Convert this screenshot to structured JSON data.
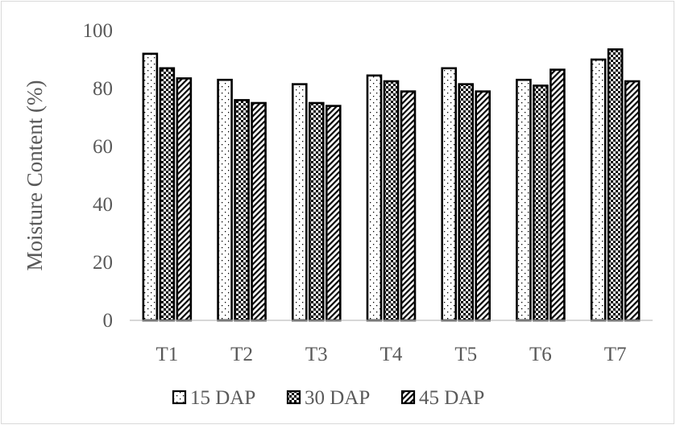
{
  "chart_data": {
    "type": "bar",
    "title": "",
    "xlabel": "",
    "ylabel": "Moisture Content (%)",
    "ylim": [
      0,
      100
    ],
    "yticks": [
      0,
      20,
      40,
      60,
      80,
      100
    ],
    "grid": false,
    "legend_position": "bottom",
    "categories": [
      "T1",
      "T2",
      "T3",
      "T4",
      "T5",
      "T6",
      "T7"
    ],
    "series": [
      {
        "name": "15 DAP",
        "pattern": "dotted",
        "values": [
          92,
          83,
          81.5,
          84.5,
          87,
          83,
          90
        ]
      },
      {
        "name": "30 DAP",
        "pattern": "checker",
        "values": [
          87,
          76,
          75,
          82.5,
          81.5,
          81,
          93.5
        ]
      },
      {
        "name": "45 DAP",
        "pattern": "diagonal",
        "values": [
          83.5,
          75,
          74,
          79,
          79,
          86.5,
          82.5
        ]
      }
    ],
    "colors": {
      "bar_outline": "#000000",
      "pattern_ink": "#000000",
      "axis": "#bfbfbf",
      "text": "#595959"
    }
  }
}
